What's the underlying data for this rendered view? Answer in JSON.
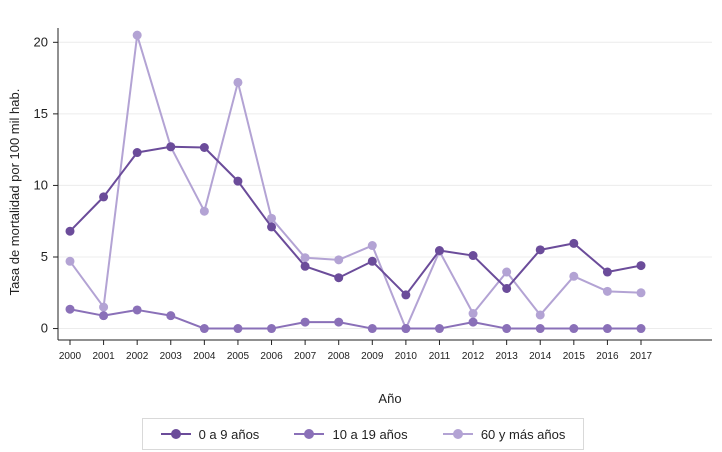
{
  "chart_data": {
    "type": "line",
    "title": "",
    "xlabel": "Año",
    "ylabel": "Tasa de mortalidad por 100 mil hab.",
    "x": [
      2000,
      2001,
      2002,
      2003,
      2004,
      2005,
      2006,
      2007,
      2008,
      2009,
      2010,
      2011,
      2012,
      2013,
      2014,
      2015,
      2016,
      2017
    ],
    "xticks": [
      "2000",
      "2001",
      "2002",
      "2003",
      "2004",
      "2005",
      "2006",
      "2007",
      "2008",
      "2009",
      "2010",
      "2011",
      "2012",
      "2013",
      "2014",
      "2015",
      "2016",
      "2017"
    ],
    "yticks": [
      "0",
      "5",
      "10",
      "15",
      "20"
    ],
    "ylim": [
      -0.8,
      21
    ],
    "grid": "horizontal",
    "legend_position": "bottom",
    "series": [
      {
        "name": "0 a 9 años",
        "color": "#6b4c9a",
        "values": [
          6.8,
          9.2,
          12.3,
          12.7,
          12.65,
          10.3,
          7.1,
          4.35,
          3.55,
          4.7,
          2.35,
          5.45,
          5.1,
          2.8,
          5.5,
          5.95,
          3.95,
          4.4
        ]
      },
      {
        "name": "10 a 19 años",
        "color": "#8a70b8",
        "values": [
          1.35,
          0.9,
          1.3,
          0.9,
          0,
          0,
          0,
          0.45,
          0.45,
          0,
          0,
          0,
          0.45,
          0,
          0,
          0,
          0,
          0
        ]
      },
      {
        "name": "60 y más años",
        "color": "#b3a3d4",
        "values": [
          4.7,
          1.5,
          20.5,
          12.7,
          8.2,
          17.2,
          7.7,
          4.95,
          4.8,
          5.8,
          0,
          5.4,
          1.05,
          3.95,
          0.95,
          3.65,
          2.6,
          2.5
        ]
      }
    ]
  }
}
